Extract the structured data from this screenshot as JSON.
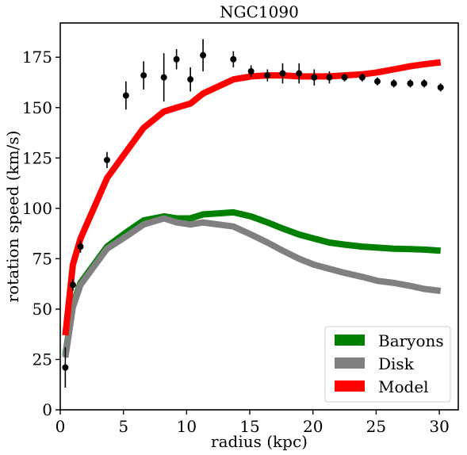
{
  "chart_data": {
    "type": "line",
    "title": "NGC1090",
    "xlabel": "radius (kpc)",
    "ylabel": "rotation speed (km/s)",
    "xlim": [
      0,
      31.5
    ],
    "ylim": [
      0,
      192
    ],
    "xticks": [
      0,
      5,
      10,
      15,
      20,
      25,
      30
    ],
    "yticks": [
      0,
      25,
      50,
      75,
      100,
      125,
      150,
      175
    ],
    "grid": false,
    "legend_position": "bottom-right",
    "series": [
      {
        "name": "Baryons",
        "color": "#008000",
        "x": [
          0.4,
          1.0,
          1.6,
          3.7,
          5.2,
          6.6,
          8.2,
          9.2,
          10.3,
          11.3,
          13.7,
          15.1,
          16.4,
          17.6,
          18.9,
          20.1,
          21.3,
          22.5,
          23.9,
          25.1,
          26.4,
          27.7,
          28.8,
          30.1
        ],
        "y": [
          27,
          52,
          63,
          81,
          88,
          94,
          96,
          95,
          95,
          97,
          98,
          96,
          93,
          90,
          87,
          85,
          83,
          82,
          81,
          80.5,
          80,
          79.8,
          79.5,
          79
        ]
      },
      {
        "name": "Disk",
        "color": "#808080",
        "x": [
          0.4,
          1.0,
          1.6,
          3.7,
          5.2,
          6.6,
          8.2,
          9.2,
          10.3,
          11.3,
          13.7,
          15.1,
          16.4,
          17.6,
          18.9,
          20.1,
          21.3,
          22.5,
          23.9,
          25.1,
          26.4,
          27.7,
          28.8,
          30.1
        ],
        "y": [
          26,
          51,
          62,
          80,
          86,
          92,
          95,
          93,
          92,
          93,
          91,
          87,
          83,
          79,
          75,
          72,
          70,
          68,
          66,
          64,
          63,
          61.5,
          60,
          59
        ]
      },
      {
        "name": "Model",
        "color": "#ff0000",
        "x": [
          0.4,
          1.0,
          1.6,
          3.7,
          5.2,
          6.6,
          8.2,
          9.2,
          10.3,
          11.3,
          13.7,
          15.1,
          16.4,
          17.6,
          18.9,
          20.1,
          21.3,
          22.5,
          23.9,
          25.1,
          26.4,
          27.7,
          28.8,
          30.1
        ],
        "y": [
          37,
          72,
          85,
          115,
          128,
          140,
          148,
          150,
          152,
          157,
          164,
          165.5,
          166,
          166,
          165.5,
          165.5,
          165.5,
          166,
          166.5,
          167.5,
          169,
          170.5,
          171.5,
          172.5
        ]
      }
    ],
    "observed": {
      "color": "#000000",
      "points": [
        {
          "x": 0.4,
          "y": 21,
          "err": 10
        },
        {
          "x": 1.0,
          "y": 62,
          "err": 3
        },
        {
          "x": 1.6,
          "y": 81,
          "err": 3
        },
        {
          "x": 3.7,
          "y": 124,
          "err": 4
        },
        {
          "x": 5.2,
          "y": 156,
          "err": 7
        },
        {
          "x": 6.6,
          "y": 166,
          "err": 7
        },
        {
          "x": 8.2,
          "y": 165,
          "err": 12
        },
        {
          "x": 9.2,
          "y": 174,
          "err": 5
        },
        {
          "x": 10.3,
          "y": 164,
          "err": 6
        },
        {
          "x": 11.3,
          "y": 176,
          "err": 8
        },
        {
          "x": 13.7,
          "y": 174,
          "err": 4
        },
        {
          "x": 15.1,
          "y": 168,
          "err": 3
        },
        {
          "x": 16.4,
          "y": 166,
          "err": 3
        },
        {
          "x": 17.6,
          "y": 167,
          "err": 5
        },
        {
          "x": 18.9,
          "y": 167,
          "err": 5
        },
        {
          "x": 20.1,
          "y": 165,
          "err": 4
        },
        {
          "x": 21.3,
          "y": 165,
          "err": 3
        },
        {
          "x": 22.5,
          "y": 165,
          "err": 2
        },
        {
          "x": 23.9,
          "y": 165,
          "err": 2
        },
        {
          "x": 25.1,
          "y": 163,
          "err": 2
        },
        {
          "x": 26.4,
          "y": 162,
          "err": 2
        },
        {
          "x": 27.7,
          "y": 162,
          "err": 2
        },
        {
          "x": 28.8,
          "y": 162,
          "err": 2
        },
        {
          "x": 30.1,
          "y": 160,
          "err": 2
        }
      ]
    }
  }
}
